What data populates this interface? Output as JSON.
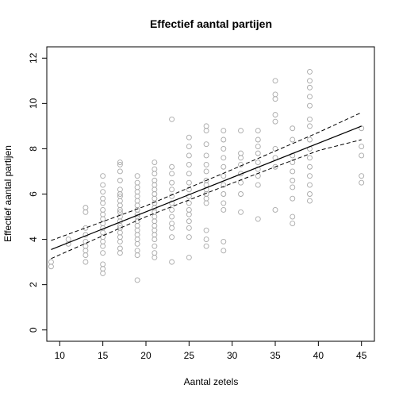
{
  "chart_data": {
    "type": "scatter",
    "title": "Effectief aantal partijen",
    "xlabel": "Aantal zetels",
    "ylabel": "Effectief aantal partijen",
    "xlim": [
      8.5,
      46.5
    ],
    "ylim": [
      -0.5,
      12.5
    ],
    "x_ticks": [
      10,
      15,
      20,
      25,
      30,
      35,
      40,
      45
    ],
    "y_ticks": [
      0,
      2,
      4,
      6,
      8,
      10,
      12
    ],
    "grid": false,
    "points": {
      "9": [
        2.8,
        3.0
      ],
      "11": [
        3.8,
        4.0
      ],
      "13": [
        3.0,
        3.3,
        3.5,
        3.7,
        3.9,
        4.2,
        4.5,
        5.2,
        5.4
      ],
      "15": [
        2.5,
        2.7,
        2.9,
        3.4,
        3.7,
        3.9,
        4.1,
        4.3,
        4.5,
        4.7,
        4.9,
        5.1,
        5.3,
        5.6,
        5.8,
        6.1,
        6.4,
        6.8
      ],
      "17": [
        3.4,
        3.6,
        3.9,
        4.1,
        4.3,
        4.5,
        4.6,
        4.8,
        5.0,
        5.2,
        5.3,
        5.5,
        5.7,
        5.9,
        6.0,
        6.2,
        6.6,
        7.0,
        7.3,
        7.4
      ],
      "19": [
        2.2,
        3.3,
        3.5,
        3.8,
        4.0,
        4.2,
        4.4,
        4.6,
        4.8,
        5.0,
        5.1,
        5.3,
        5.5,
        5.7,
        5.9,
        6.1,
        6.3,
        6.5,
        6.8
      ],
      "21": [
        3.2,
        3.4,
        3.7,
        4.0,
        4.2,
        4.4,
        4.6,
        4.8,
        5.0,
        5.2,
        5.4,
        5.6,
        5.8,
        6.0,
        6.2,
        6.4,
        6.6,
        6.9,
        7.1,
        7.4
      ],
      "23": [
        3.0,
        4.1,
        4.5,
        4.7,
        5.0,
        5.3,
        5.6,
        5.9,
        6.2,
        6.5,
        6.9,
        7.2,
        9.3
      ],
      "25": [
        3.2,
        4.1,
        4.5,
        4.8,
        5.1,
        5.3,
        5.6,
        5.9,
        6.2,
        6.5,
        6.9,
        7.3,
        7.7,
        8.1,
        8.5
      ],
      "27": [
        3.7,
        4.0,
        4.4,
        5.6,
        5.8,
        6.0,
        6.2,
        6.4,
        6.6,
        7.0,
        7.3,
        7.7,
        8.2,
        8.8,
        9.0
      ],
      "29": [
        3.5,
        3.9,
        5.3,
        5.6,
        6.0,
        6.4,
        6.8,
        7.2,
        7.6,
        8.0,
        8.4,
        8.8
      ],
      "31": [
        5.2,
        6.0,
        6.5,
        6.9,
        7.3,
        7.6,
        7.8,
        8.8
      ],
      "33": [
        4.9,
        6.4,
        6.8,
        7.1,
        7.4,
        7.8,
        8.1,
        8.4,
        8.8
      ],
      "35": [
        5.3,
        7.2,
        7.6,
        8.0,
        9.2,
        9.5,
        10.2,
        10.4,
        11.0
      ],
      "37": [
        4.7,
        5.0,
        5.8,
        6.3,
        6.6,
        7.0,
        7.4,
        7.7,
        8.4,
        8.9
      ],
      "39": [
        5.7,
        6.0,
        6.4,
        6.8,
        7.2,
        7.6,
        8.0,
        8.4,
        9.0,
        9.3,
        9.9,
        10.3,
        10.7,
        11.0,
        11.4
      ],
      "45": [
        6.5,
        6.8,
        7.7,
        8.1,
        8.9
      ]
    },
    "fit_line": {
      "x": [
        9,
        45
      ],
      "y": [
        3.55,
        9.0
      ]
    },
    "ci_upper": {
      "x": [
        9,
        20,
        30,
        40,
        45
      ],
      "y": [
        3.95,
        5.48,
        7.08,
        8.72,
        9.6
      ]
    },
    "ci_lower": {
      "x": [
        9,
        20,
        30,
        40,
        45
      ],
      "y": [
        3.15,
        5.0,
        6.48,
        7.92,
        8.4
      ]
    }
  }
}
